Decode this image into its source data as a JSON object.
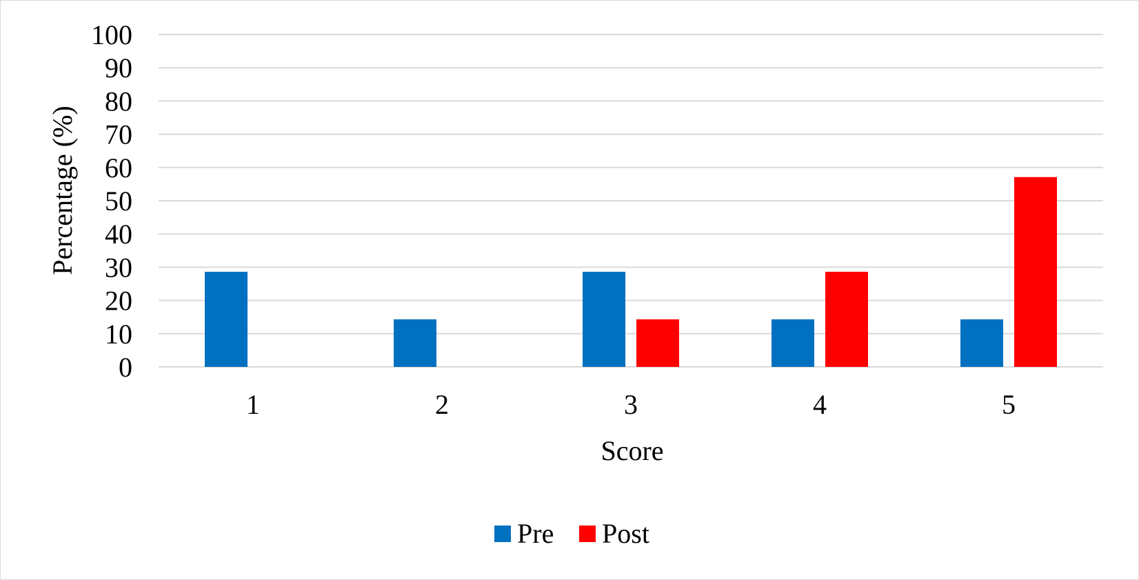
{
  "chart_data": {
    "type": "bar",
    "categories": [
      "1",
      "2",
      "3",
      "4",
      "5"
    ],
    "series": [
      {
        "name": "Pre",
        "color": "#0070c0",
        "values": [
          28.6,
          14.3,
          28.6,
          14.3,
          14.3
        ]
      },
      {
        "name": "Post",
        "color": "#ff0000",
        "values": [
          0,
          0,
          14.3,
          28.6,
          57.1
        ]
      }
    ],
    "xlabel": "Score",
    "ylabel": "Percentage (%)",
    "ylim": [
      0,
      100
    ],
    "yticks": [
      "0",
      "10",
      "20",
      "30",
      "40",
      "50",
      "60",
      "70",
      "80",
      "90",
      "100"
    ],
    "grid": true,
    "legend_position": "bottom"
  }
}
